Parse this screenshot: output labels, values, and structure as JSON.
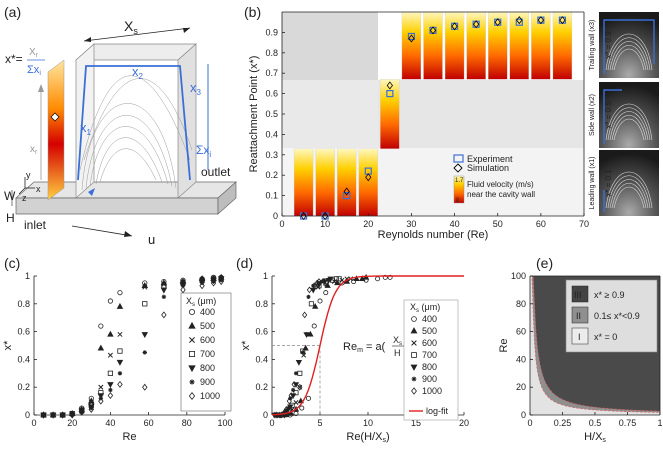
{
  "panel_labels": {
    "a": "(a)",
    "b": "(b)",
    "c": "(c)",
    "d": "(d)",
    "e": "(e)"
  },
  "schematic": {
    "xs": "X",
    "xs_sub": "s",
    "x1": "x",
    "x1_sub": "1",
    "x2": "x",
    "x2_sub": "2",
    "x3": "x",
    "x3_sub": "3",
    "sum_xi": "Σx",
    "sum_xi_sub": "i",
    "xstar_lhs": "x*=",
    "xr_num": "X",
    "xr_num_sub": "r",
    "xr_den": "Σx",
    "xr_den_sub": "i",
    "xr_side": "x",
    "xr_side_sub": "r",
    "w": "W",
    "h": "H",
    "inlet": "inlet",
    "outlet": "outlet",
    "u": "u",
    "axis_y": "y",
    "axis_z": "z",
    "axis_x": "x"
  },
  "colors": {
    "blue": "#3a6fd8",
    "red": "#e02020",
    "dark": "#4a4a4a",
    "mid": "#9a9a9a",
    "light": "#e0e0e0"
  },
  "chart_data": [
    {
      "id": "b",
      "type": "scatter",
      "xlabel": "Reynolds number (Re)",
      "ylabel": "Reattachment Point  (x*)",
      "xlim": [
        0,
        70
      ],
      "ylim": [
        0,
        1
      ],
      "xticks": [
        0,
        10,
        20,
        30,
        40,
        50,
        60,
        70
      ],
      "yticks": [
        0,
        0.1,
        0.2,
        0.3,
        0.4,
        0.5,
        0.6,
        0.7,
        0.8,
        0.9
      ],
      "series": [
        {
          "name": "Experiment",
          "marker": "square",
          "x": [
            5,
            10,
            15,
            20,
            25,
            30,
            35,
            40,
            45,
            50,
            55,
            60,
            65
          ],
          "y": [
            0,
            0,
            0.1,
            0.22,
            0.6,
            0.88,
            0.91,
            0.93,
            0.94,
            0.95,
            0.95,
            0.96,
            0.96
          ]
        },
        {
          "name": "Simulation",
          "marker": "diamond",
          "x": [
            5,
            10,
            15,
            20,
            25,
            30,
            35,
            40,
            45,
            50,
            55,
            60,
            65
          ],
          "y": [
            0,
            0,
            0.12,
            0.19,
            0.64,
            0.87,
            0.91,
            0.93,
            0.94,
            0.95,
            0.96,
            0.96,
            0.96
          ]
        }
      ],
      "colorbar": {
        "max": "1.7",
        "min": "0",
        "label1": "Fluid velocity (m/s)",
        "label2": "near the cavity wall"
      },
      "side_labels": [
        "Trailing wall (x",
        "Side wall (x",
        "Leading wall (x"
      ],
      "side_subs": [
        "3",
        "2",
        "1"
      ],
      "side_values": [
        "x* = 0.9",
        "x* = 0.5",
        "x* = 0.1"
      ]
    },
    {
      "id": "c",
      "type": "scatter",
      "xlabel": "Re",
      "ylabel": "x*",
      "xlim": [
        0,
        100
      ],
      "ylim": [
        0,
        1
      ],
      "xticks": [
        0,
        20,
        40,
        60,
        80,
        100
      ],
      "yticks": [
        0,
        0.2,
        0.4,
        0.6,
        0.8,
        1
      ],
      "legend_title": "X",
      "legend_title_sub": "s",
      "legend_title_unit": " (μm)",
      "series": [
        {
          "name": "400",
          "marker": "circle",
          "x": [
            5,
            10,
            15,
            20,
            25,
            30,
            35,
            40,
            45,
            58,
            68,
            78,
            88,
            94,
            98
          ],
          "y": [
            0,
            0,
            0,
            0.01,
            0.05,
            0.12,
            0.64,
            0.82,
            0.88,
            0.95,
            0.96,
            0.97,
            0.98,
            0.99,
            0.99
          ]
        },
        {
          "name": "500",
          "marker": "triangle",
          "x": [
            5,
            10,
            15,
            20,
            25,
            30,
            35,
            40,
            45,
            58,
            68,
            78,
            88,
            94,
            98
          ],
          "y": [
            0,
            0,
            0,
            0.01,
            0.04,
            0.1,
            0.48,
            0.58,
            0.78,
            0.93,
            0.95,
            0.96,
            0.98,
            0.98,
            0.99
          ]
        },
        {
          "name": "600",
          "marker": "x",
          "x": [
            5,
            10,
            15,
            20,
            25,
            30,
            35,
            40,
            45,
            58,
            68,
            78,
            88,
            94,
            98
          ],
          "y": [
            0,
            0,
            0,
            0.01,
            0.04,
            0.09,
            0.2,
            0.43,
            0.58,
            0.92,
            0.94,
            0.96,
            0.97,
            0.98,
            0.98
          ]
        },
        {
          "name": "700",
          "marker": "square",
          "x": [
            5,
            10,
            15,
            20,
            25,
            30,
            35,
            40,
            45,
            58,
            68,
            78,
            88,
            94,
            98
          ],
          "y": [
            0,
            0,
            0,
            0.01,
            0.03,
            0.07,
            0.16,
            0.3,
            0.46,
            0.8,
            0.93,
            0.95,
            0.97,
            0.98,
            0.98
          ]
        },
        {
          "name": "800",
          "marker": "triangle-down",
          "x": [
            5,
            10,
            15,
            20,
            25,
            30,
            35,
            40,
            45,
            58,
            68,
            78,
            88,
            94,
            98
          ],
          "y": [
            0,
            0,
            0,
            0,
            0.03,
            0.06,
            0.14,
            0.22,
            0.38,
            0.58,
            0.9,
            0.94,
            0.96,
            0.97,
            0.98
          ]
        },
        {
          "name": "900",
          "marker": "star",
          "x": [
            5,
            10,
            15,
            20,
            25,
            30,
            35,
            40,
            45,
            58,
            68,
            78,
            88,
            94,
            98
          ],
          "y": [
            0,
            0,
            0,
            0,
            0.02,
            0.05,
            0.12,
            0.18,
            0.3,
            0.45,
            0.85,
            0.93,
            0.95,
            0.96,
            0.97
          ]
        },
        {
          "name": "1000",
          "marker": "diamond",
          "x": [
            5,
            10,
            15,
            20,
            25,
            30,
            35,
            40,
            45,
            58,
            68,
            78,
            88,
            94,
            98
          ],
          "y": [
            0,
            0,
            0,
            0,
            0.02,
            0.04,
            0.1,
            0.14,
            0.22,
            0.2,
            0.72,
            0.9,
            0.93,
            0.95,
            0.96
          ]
        }
      ]
    },
    {
      "id": "d",
      "type": "scatter",
      "xlabel": "Re(H/X",
      "xlabel_sub": "s",
      "xlabel_end": ")",
      "ylabel": "x*",
      "xlim": [
        0,
        20
      ],
      "ylim": [
        0,
        1
      ],
      "xticks": [
        0,
        5,
        10,
        15,
        20
      ],
      "yticks": [
        0,
        0.2,
        0.4,
        0.6,
        0.8,
        1
      ],
      "annotation": "Re",
      "annotation_sub": "m",
      "annotation_eq": " = a(",
      "annotation_num": "X",
      "annotation_num_sub": "s",
      "annotation_den": "H",
      "annotation_end": ")",
      "legend_title": "X",
      "legend_title_sub": "s",
      "legend_title_unit": " (μm)",
      "fit": {
        "name": "log-fit",
        "x0": 5,
        "k": 1.25
      },
      "series": [
        {
          "name": "400",
          "marker": "circle",
          "x": [
            0.6,
            1.3,
            1.9,
            2.5,
            3.1,
            3.8,
            4.4,
            5,
            5.6,
            7.3,
            8.5,
            9.8,
            11,
            11.8,
            12.3
          ],
          "y": [
            0,
            0,
            0,
            0.01,
            0.05,
            0.12,
            0.64,
            0.82,
            0.88,
            0.95,
            0.96,
            0.97,
            0.98,
            0.99,
            0.99
          ]
        },
        {
          "name": "500",
          "marker": "triangle",
          "x": [
            0.5,
            1,
            1.5,
            2,
            2.5,
            3,
            3.5,
            4,
            4.5,
            5.8,
            6.8,
            7.8,
            8.8,
            9.4,
            9.8
          ],
          "y": [
            0,
            0,
            0,
            0.01,
            0.04,
            0.1,
            0.48,
            0.58,
            0.78,
            0.93,
            0.95,
            0.96,
            0.98,
            0.98,
            0.99
          ]
        },
        {
          "name": "600",
          "marker": "x",
          "x": [
            0.4,
            0.8,
            1.3,
            1.7,
            2.1,
            2.5,
            2.9,
            3.3,
            3.8,
            4.8,
            5.7,
            6.5,
            7.3,
            7.8,
            8.2
          ],
          "y": [
            0,
            0,
            0,
            0.01,
            0.04,
            0.09,
            0.2,
            0.43,
            0.58,
            0.92,
            0.94,
            0.96,
            0.97,
            0.98,
            0.98
          ]
        },
        {
          "name": "700",
          "marker": "square",
          "x": [
            0.4,
            0.7,
            1.1,
            1.4,
            1.8,
            2.1,
            2.5,
            2.9,
            3.2,
            4.1,
            4.9,
            5.6,
            6.3,
            6.7,
            7
          ],
          "y": [
            0,
            0,
            0,
            0.01,
            0.03,
            0.07,
            0.16,
            0.3,
            0.46,
            0.8,
            0.93,
            0.95,
            0.97,
            0.98,
            0.98
          ]
        },
        {
          "name": "800",
          "marker": "triangle-down",
          "x": [
            0.3,
            0.6,
            0.9,
            1.3,
            1.6,
            1.9,
            2.2,
            2.5,
            2.8,
            3.6,
            4.3,
            4.9,
            5.5,
            5.9,
            6.1
          ],
          "y": [
            0,
            0,
            0,
            0,
            0.03,
            0.06,
            0.14,
            0.22,
            0.38,
            0.58,
            0.9,
            0.94,
            0.96,
            0.97,
            0.98
          ]
        },
        {
          "name": "900",
          "marker": "star",
          "x": [
            0.3,
            0.6,
            0.8,
            1.1,
            1.4,
            1.7,
            1.9,
            2.2,
            2.5,
            3.2,
            3.8,
            4.3,
            4.9,
            5.2,
            5.4
          ],
          "y": [
            0,
            0,
            0,
            0,
            0.02,
            0.05,
            0.12,
            0.18,
            0.3,
            0.45,
            0.85,
            0.93,
            0.95,
            0.96,
            0.97
          ]
        },
        {
          "name": "1000",
          "marker": "diamond",
          "x": [
            0.3,
            0.5,
            0.8,
            1,
            1.3,
            1.5,
            1.8,
            2,
            2.3,
            2.9,
            3.4,
            3.9,
            4.4,
            4.7,
            4.9
          ],
          "y": [
            0,
            0,
            0,
            0,
            0.02,
            0.04,
            0.1,
            0.14,
            0.22,
            0.2,
            0.72,
            0.9,
            0.93,
            0.95,
            0.96
          ]
        }
      ]
    },
    {
      "id": "e",
      "type": "area",
      "xlabel": "H/X",
      "xlabel_sub": "s",
      "ylabel": "Re",
      "xlim": [
        0,
        1
      ],
      "ylim": [
        0,
        100
      ],
      "xticks": [
        0,
        0.25,
        0.5,
        0.75,
        1
      ],
      "xtick_labels": [
        "0",
        "0.25",
        "0.5",
        "0.75",
        "1"
      ],
      "yticks": [
        0,
        20,
        40,
        60,
        80,
        100
      ],
      "boundary_low": {
        "a": 1.8
      },
      "boundary_high": {
        "a": 2.8
      },
      "legend": [
        {
          "badge": "III",
          "text": "x* ≥ 0.9"
        },
        {
          "badge": "II",
          "text": "0.1≤ x*<0.9"
        },
        {
          "badge": "I",
          "text": "x* = 0"
        }
      ]
    }
  ]
}
